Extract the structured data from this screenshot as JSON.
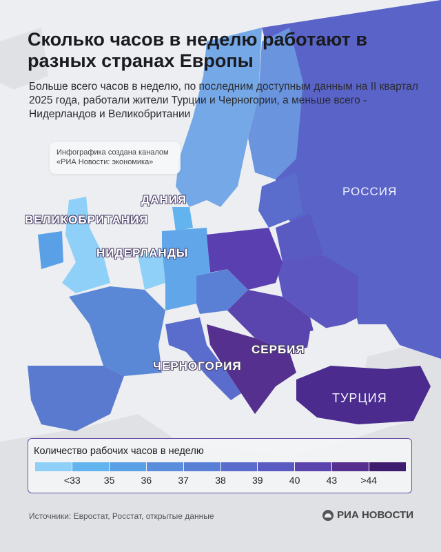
{
  "header": {
    "title": "Сколько часов в неделю работают в разных странах Европы",
    "subtitle": "Больше всего часов в неделю, по последним доступным данным на II квартал 2025 года, работали жители Турции и Черногории, а меньше всего - Нидерландов и Великобритании"
  },
  "credit": "Инфографика создана каналом «РИА Новости: экономика»",
  "map_labels": {
    "russia": "РОССИЯ",
    "denmark": "ДАНИЯ",
    "uk": "ВЕЛИКОБРИТАНИЯ",
    "netherlands": "НИДЕРЛАНДЫ",
    "serbia": "СЕРБИЯ",
    "montenegro": "ЧЕРНОГОРИЯ",
    "turkey": "ТУРЦИЯ"
  },
  "legend": {
    "title": "Количество рабочих часов в неделю",
    "ticks": [
      "<33",
      "35",
      "36",
      "37",
      "38",
      "39",
      "40",
      "43",
      ">44"
    ],
    "colors": [
      "#8fd0f8",
      "#62b4ee",
      "#5aa0e6",
      "#5a8edc",
      "#5a80d6",
      "#5a6ccc",
      "#5a5bc2",
      "#5a44ae",
      "#55308f",
      "#3f1d6e"
    ]
  },
  "footer": {
    "sources": "Источники: Евростат, Росстат, открытые данные",
    "logo": "РИА НОВОСТИ"
  }
}
